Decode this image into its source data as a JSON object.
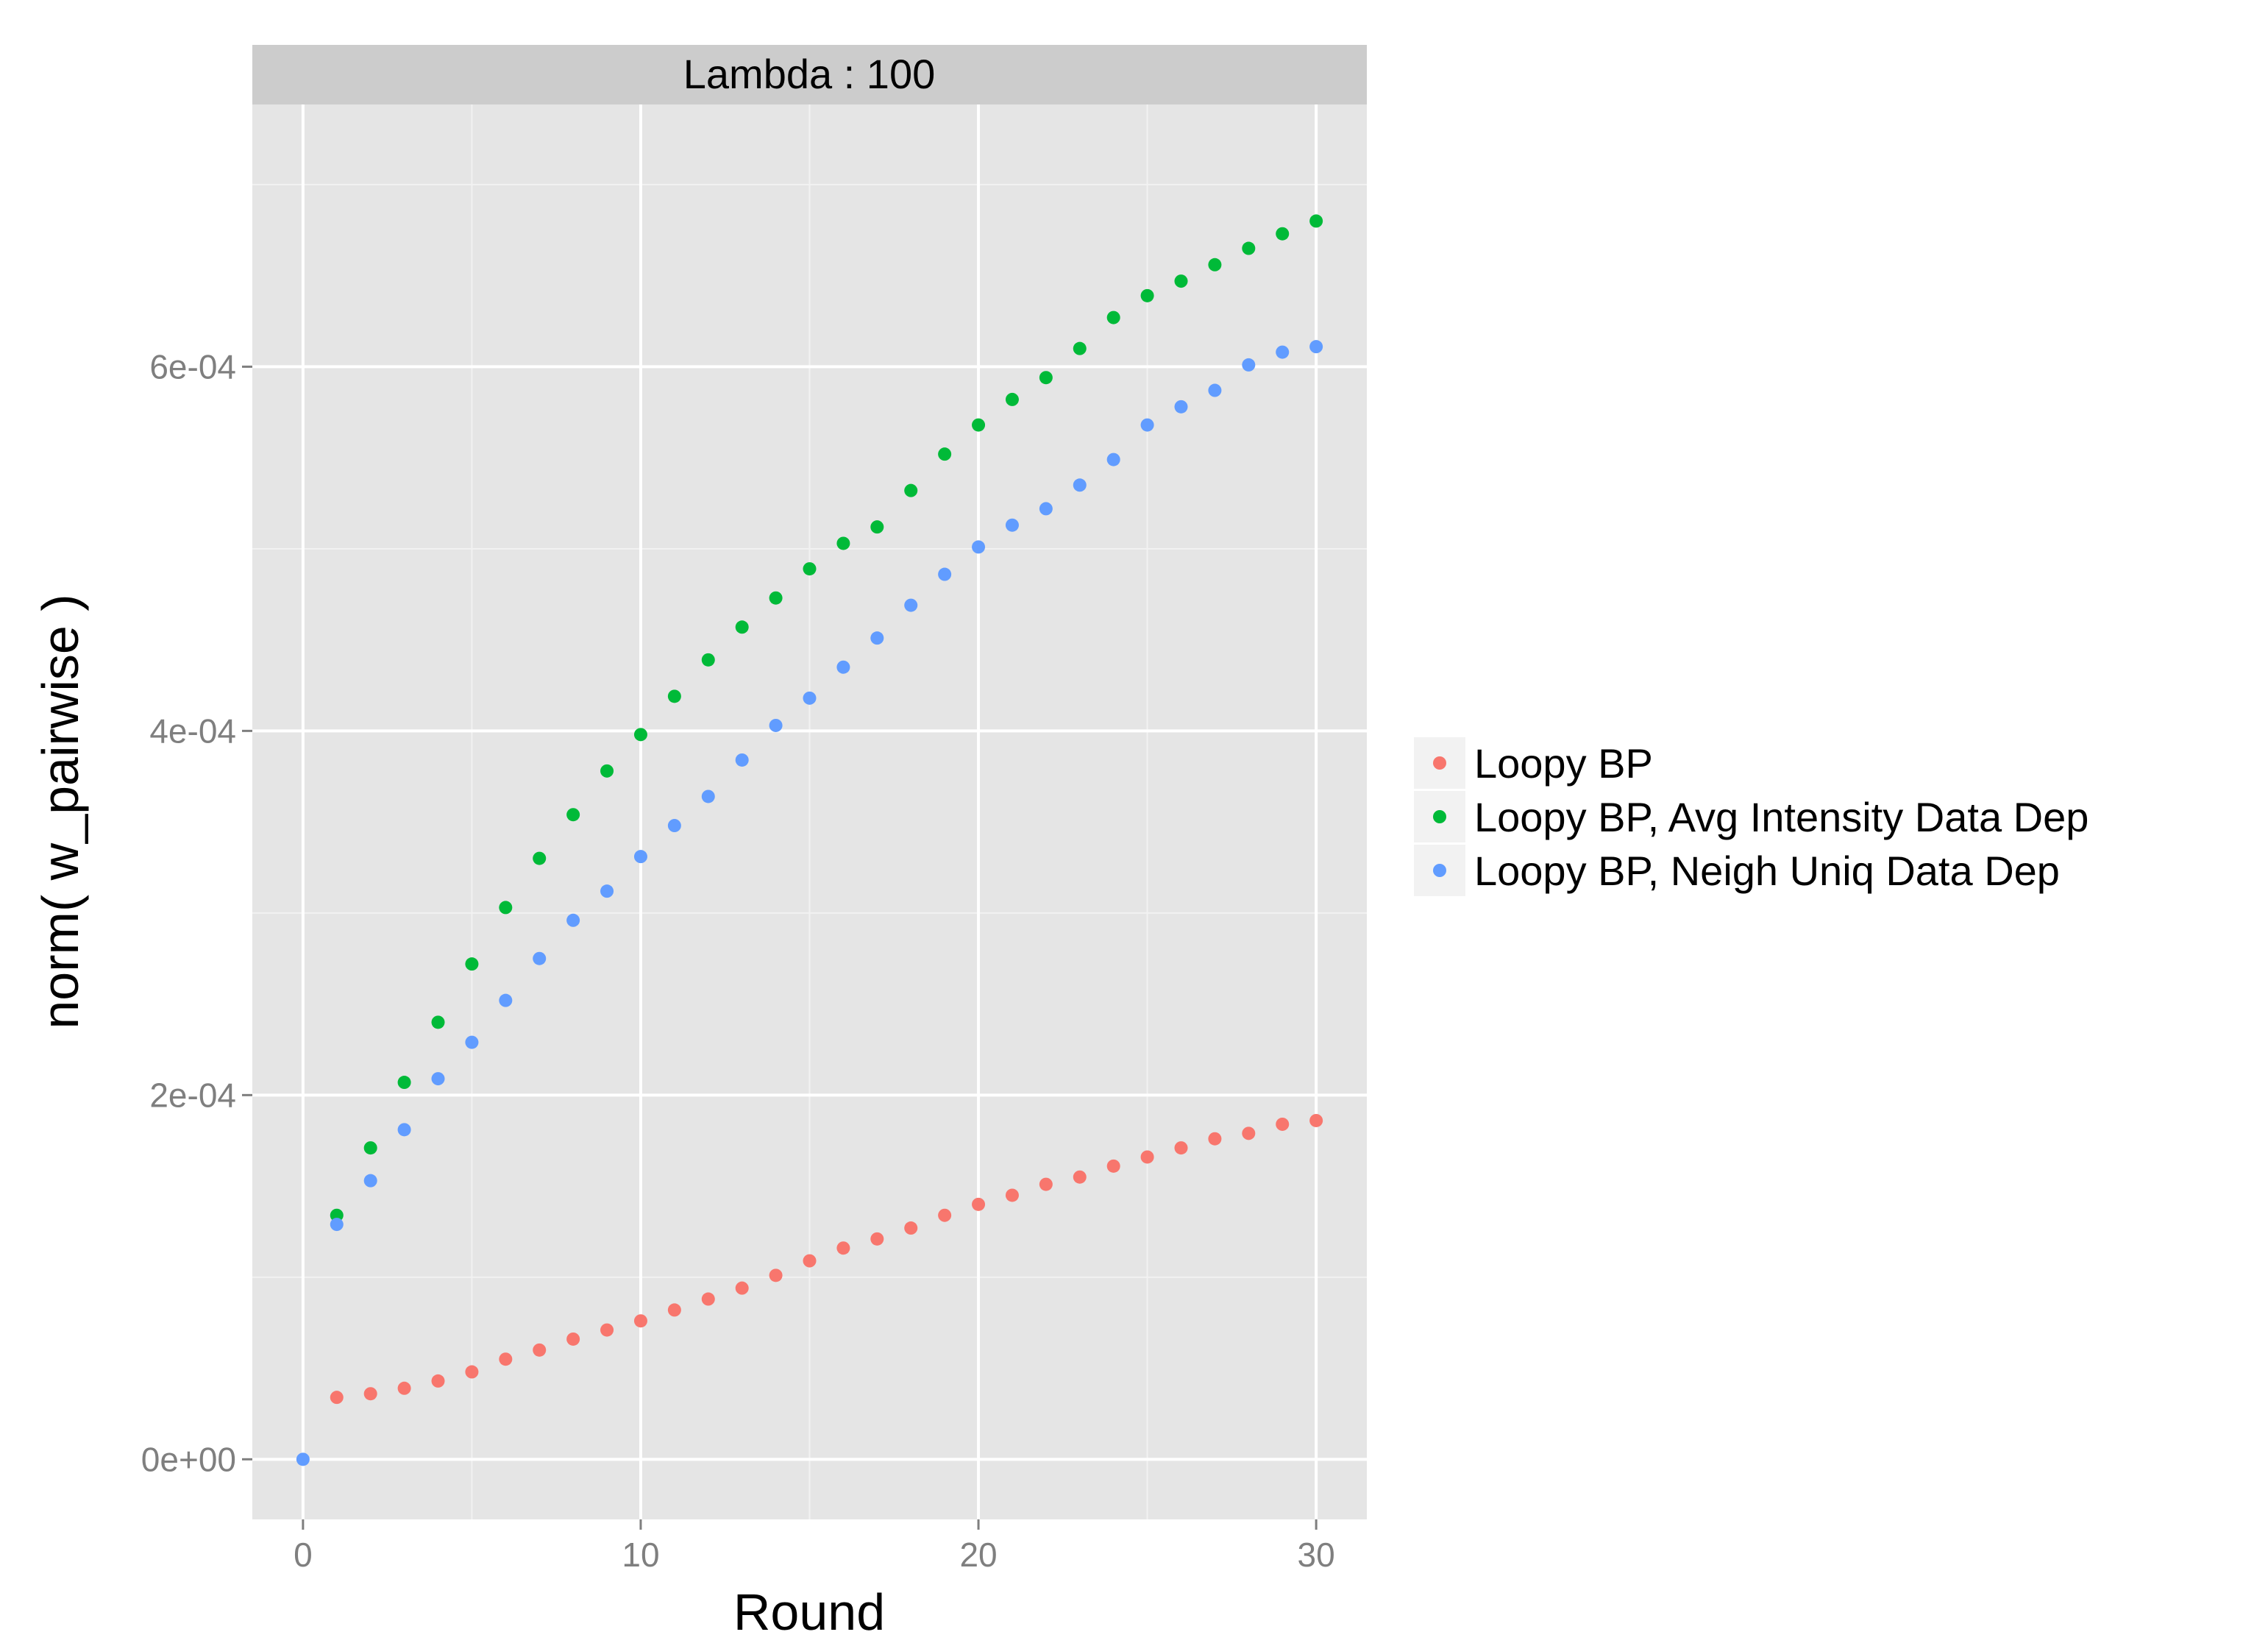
{
  "chart_data": {
    "type": "scatter",
    "facet_label": "Lambda : 100",
    "xlabel": "Round",
    "ylabel": "norm( w_pairwise )",
    "xlim": [
      -1.5,
      31.5
    ],
    "ylim": [
      -3.3e-05,
      0.000744
    ],
    "x_ticks": [
      0,
      10,
      20,
      30
    ],
    "x_tick_labels": [
      "0",
      "10",
      "20",
      "30"
    ],
    "y_ticks": [
      0,
      0.0002,
      0.0004,
      0.0006
    ],
    "y_tick_labels": [
      "0e+00",
      "2e-04",
      "4e-04",
      "6e-04"
    ],
    "grid": true,
    "legend_position": "right",
    "series": [
      {
        "name": "Loopy BP",
        "color": "#F8766D",
        "x": [
          1,
          2,
          3,
          4,
          5,
          6,
          7,
          8,
          9,
          10,
          11,
          12,
          13,
          14,
          15,
          16,
          17,
          18,
          19,
          20,
          21,
          22,
          23,
          24,
          25,
          26,
          27,
          28,
          29,
          30
        ],
        "y": [
          3.4e-05,
          3.6e-05,
          3.9e-05,
          4.3e-05,
          4.8e-05,
          5.5e-05,
          6e-05,
          6.6e-05,
          7.1e-05,
          7.6e-05,
          8.2e-05,
          8.8e-05,
          9.4e-05,
          0.000101,
          0.000109,
          0.000116,
          0.000121,
          0.000127,
          0.000134,
          0.00014,
          0.000145,
          0.000151,
          0.000155,
          0.000161,
          0.000166,
          0.000171,
          0.000176,
          0.000179,
          0.000184,
          0.000186
        ]
      },
      {
        "name": "Loopy BP, Avg Intensity Data Dep",
        "color": "#00BA38",
        "x": [
          1,
          2,
          3,
          4,
          5,
          6,
          7,
          8,
          9,
          10,
          11,
          12,
          13,
          14,
          15,
          16,
          17,
          18,
          19,
          20,
          21,
          22,
          23,
          24,
          25,
          26,
          27,
          28,
          29,
          30
        ],
        "y": [
          0.000134,
          0.000171,
          0.000207,
          0.00024,
          0.000272,
          0.000303,
          0.00033,
          0.000354,
          0.000378,
          0.000398,
          0.000419,
          0.000439,
          0.000457,
          0.000473,
          0.000489,
          0.000503,
          0.000512,
          0.000532,
          0.000552,
          0.000568,
          0.000582,
          0.000594,
          0.00061,
          0.000627,
          0.000639,
          0.000647,
          0.000656,
          0.000665,
          0.000673,
          0.00068
        ]
      },
      {
        "name": "Loopy BP, Neigh Uniq Data Dep",
        "color": "#619CFF",
        "x": [
          0,
          1,
          2,
          3,
          4,
          5,
          6,
          7,
          8,
          9,
          10,
          11,
          12,
          13,
          14,
          15,
          16,
          17,
          18,
          19,
          20,
          21,
          22,
          23,
          24,
          25,
          26,
          27,
          28,
          29,
          30
        ],
        "y": [
          0.0,
          0.000129,
          0.000153,
          0.000181,
          0.000209,
          0.000229,
          0.000252,
          0.000275,
          0.000296,
          0.000312,
          0.000331,
          0.000348,
          0.000364,
          0.000384,
          0.000403,
          0.000418,
          0.000435,
          0.000451,
          0.000469,
          0.000486,
          0.000501,
          0.000513,
          0.000522,
          0.000535,
          0.000549,
          0.000568,
          0.000578,
          0.000587,
          0.000601,
          0.000608,
          0.000611
        ]
      }
    ]
  }
}
